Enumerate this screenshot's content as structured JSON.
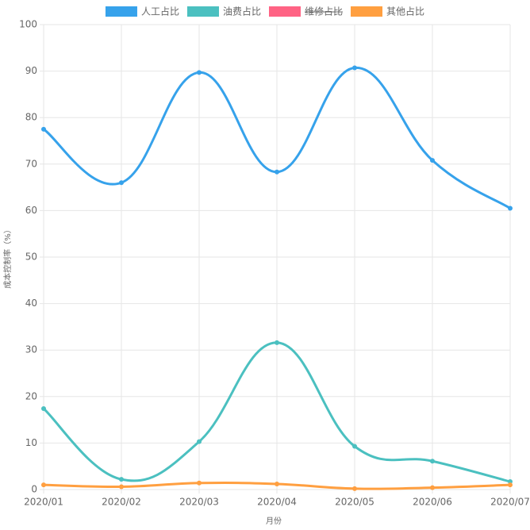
{
  "chart_data": {
    "type": "line",
    "categories": [
      "2020/01",
      "2020/02",
      "2020/03",
      "2020/04",
      "2020/05",
      "2020/06",
      "2020/07"
    ],
    "series": [
      {
        "name": "人工占比",
        "color": "#36a2eb",
        "values": [
          77.5,
          66,
          89.7,
          68.3,
          90.7,
          70.8,
          60.5
        ]
      },
      {
        "name": "油费占比",
        "color": "#4bc0c0",
        "values": [
          17.4,
          2.2,
          10.3,
          31.6,
          9.3,
          6.1,
          1.7
        ]
      },
      {
        "name": "维修占比",
        "color": "#ff6384",
        "hidden": true,
        "values": [
          null,
          null,
          null,
          null,
          null,
          null,
          null
        ]
      },
      {
        "name": "其他占比",
        "color": "#ff9f40",
        "values": [
          1.0,
          0.6,
          1.4,
          1.2,
          0.2,
          0.4,
          1.0
        ]
      }
    ],
    "x_label": "月份",
    "y_label": "成本控制率（%）",
    "ylim": [
      0,
      100
    ],
    "yticks": [
      0,
      10,
      20,
      30,
      40,
      50,
      60,
      70,
      80,
      90,
      100
    ],
    "grid": true,
    "legend": "top"
  }
}
